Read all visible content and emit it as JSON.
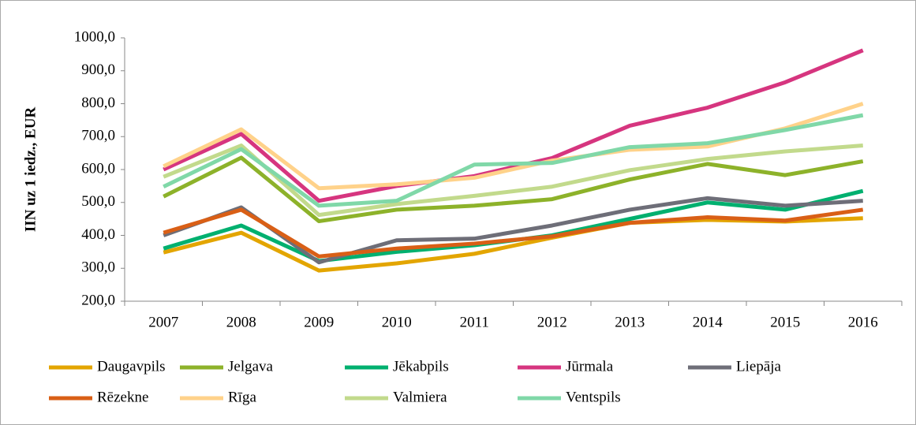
{
  "chart_data": {
    "type": "line",
    "y_label": "IIN uz 1 iedz., EUR",
    "categories": [
      "2007",
      "2008",
      "2009",
      "2010",
      "2011",
      "2012",
      "2013",
      "2014",
      "2015",
      "2016"
    ],
    "series": [
      {
        "name": "Daugavpils",
        "color": "#e3a500",
        "values": [
          348,
          408,
          293,
          315,
          344,
          393,
          438,
          447,
          442,
          452
        ]
      },
      {
        "name": "Jelgava",
        "color": "#8db22a",
        "values": [
          518,
          636,
          443,
          478,
          490,
          510,
          570,
          617,
          583,
          625
        ]
      },
      {
        "name": "Jēkabpils",
        "color": "#00b06f",
        "values": [
          360,
          430,
          322,
          350,
          370,
          400,
          450,
          500,
          478,
          535
        ]
      },
      {
        "name": "Jūrmala",
        "color": "#d6357f",
        "values": [
          600,
          708,
          505,
          550,
          580,
          635,
          733,
          788,
          865,
          962
        ]
      },
      {
        "name": "Liepāja",
        "color": "#6e6e78",
        "values": [
          400,
          485,
          318,
          385,
          390,
          430,
          478,
          513,
          490,
          505
        ]
      },
      {
        "name": "Rēzekne",
        "color": "#d95f16",
        "values": [
          408,
          478,
          336,
          360,
          375,
          397,
          438,
          455,
          445,
          478
        ]
      },
      {
        "name": "Rīga",
        "color": "#ffd28a",
        "values": [
          610,
          722,
          543,
          555,
          575,
          627,
          660,
          670,
          725,
          800
        ]
      },
      {
        "name": "Valmiera",
        "color": "#c2da8c",
        "values": [
          578,
          673,
          462,
          495,
          520,
          548,
          598,
          632,
          655,
          673
        ]
      },
      {
        "name": "Ventspils",
        "color": "#80d8a8",
        "values": [
          548,
          662,
          490,
          505,
          615,
          620,
          668,
          680,
          720,
          765
        ]
      }
    ],
    "ylim": [
      200,
      1000
    ],
    "yticks": [
      {
        "value": 200,
        "label": "200,0"
      },
      {
        "value": 300,
        "label": "300,0"
      },
      {
        "value": 400,
        "label": "400,0"
      },
      {
        "value": 500,
        "label": "500,0"
      },
      {
        "value": 600,
        "label": "600,0"
      },
      {
        "value": 700,
        "label": "700,0"
      },
      {
        "value": 800,
        "label": "800,0"
      },
      {
        "value": 900,
        "label": "900,0"
      },
      {
        "value": 1000,
        "label": "1000,0"
      }
    ],
    "grid": false
  }
}
